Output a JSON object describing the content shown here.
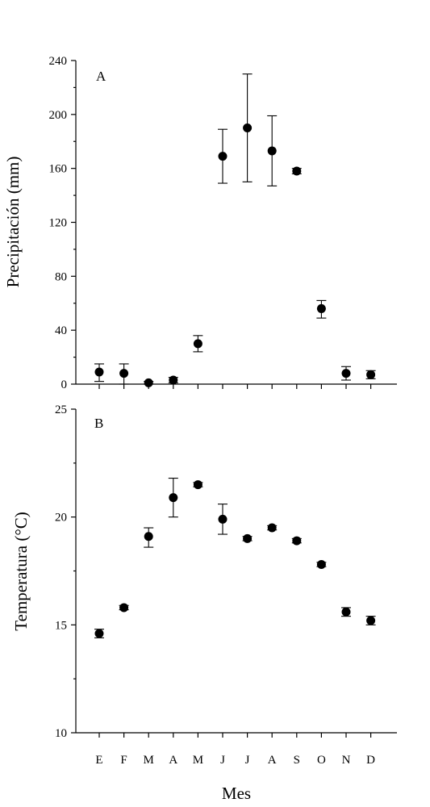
{
  "chart_data": [
    {
      "type": "scatter",
      "panel_label": "A",
      "ylabel": "Precipitación (mm)",
      "xlabel": "",
      "ylim": [
        0,
        240
      ],
      "yticks": [
        0,
        40,
        80,
        120,
        160,
        200,
        240
      ],
      "categories": [
        "E",
        "F",
        "M",
        "A",
        "M",
        "J",
        "J",
        "A",
        "S",
        "O",
        "N",
        "D"
      ],
      "values": [
        9,
        8,
        1,
        3,
        30,
        169,
        190,
        173,
        158,
        56,
        8,
        7
      ],
      "err_low": [
        2,
        0,
        0,
        1,
        24,
        149,
        150,
        147,
        156,
        49,
        3,
        4
      ],
      "err_high": [
        15,
        15,
        2,
        5,
        36,
        189,
        230,
        199,
        160,
        62,
        13,
        10
      ],
      "grid": false
    },
    {
      "type": "scatter",
      "panel_label": "B",
      "ylabel": "Temperatura  (°C)",
      "xlabel": "Mes",
      "ylim": [
        10,
        25
      ],
      "yticks": [
        10,
        15,
        20,
        25
      ],
      "categories": [
        "E",
        "F",
        "M",
        "A",
        "M",
        "J",
        "J",
        "A",
        "S",
        "O",
        "N",
        "D"
      ],
      "values": [
        14.6,
        15.8,
        19.1,
        20.9,
        21.5,
        19.9,
        19.0,
        19.5,
        18.9,
        17.8,
        15.6,
        15.2
      ],
      "err_low": [
        14.4,
        15.7,
        18.6,
        20.0,
        21.4,
        19.2,
        18.9,
        19.4,
        18.8,
        17.7,
        15.4,
        15.0
      ],
      "err_high": [
        14.8,
        15.9,
        19.5,
        21.8,
        21.6,
        20.6,
        19.1,
        19.6,
        19.0,
        17.9,
        15.8,
        15.4
      ],
      "grid": false
    }
  ]
}
